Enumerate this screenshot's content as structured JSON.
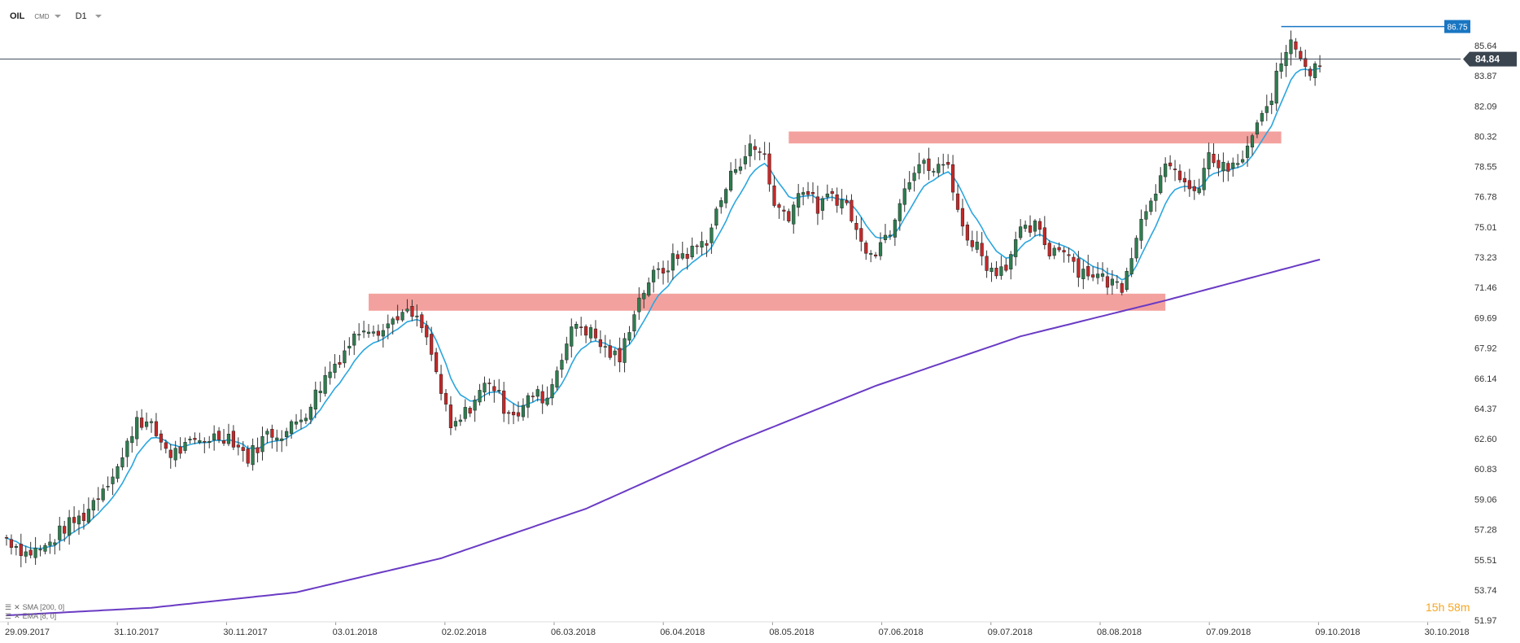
{
  "header": {
    "symbol": "OIL",
    "exchange": "CMD",
    "timeframe": "D1"
  },
  "indicators": [
    {
      "label": "SMA [200, 0]",
      "color": "#6a3bc4"
    },
    {
      "label": "EMA [8, 0]",
      "color": "#2aa6df"
    }
  ],
  "timer": {
    "hours": "15",
    "h": "h",
    "minutes": "58",
    "m": "m"
  },
  "colors": {
    "up": "#2e7d4f",
    "down": "#c62828",
    "wick": "#333333",
    "ema": "#2aa6df",
    "sma": "#6a3bc4",
    "zone": "#f08a86",
    "last_price_line": "#3a4a5a",
    "high_line": "#1976c2"
  },
  "chart_data": {
    "type": "candlestick",
    "title": "",
    "ylim": [
      51.97,
      87.35
    ],
    "y_ticks": [
      "85.64",
      "83.87",
      "82.09",
      "80.32",
      "78.55",
      "76.78",
      "75.01",
      "73.23",
      "71.46",
      "69.69",
      "67.92",
      "66.14",
      "64.37",
      "62.60",
      "60.83",
      "59.06",
      "57.28",
      "55.51",
      "53.74",
      "51.97"
    ],
    "x_labels": [
      "29.09.2017",
      "31.10.2017",
      "30.11.2017",
      "03.01.2018",
      "02.02.2018",
      "06.03.2018",
      "06.04.2018",
      "08.05.2018",
      "07.06.2018",
      "09.07.2018",
      "08.08.2018",
      "07.09.2018",
      "09.10.2018",
      "30.10.2018"
    ],
    "last_price": "84.84",
    "high_marker": "86.75",
    "close_path": [
      [
        0,
        56.8
      ],
      [
        4,
        55.9
      ],
      [
        8,
        56.2
      ],
      [
        12,
        57.4
      ],
      [
        16,
        58.1
      ],
      [
        20,
        59.8
      ],
      [
        24,
        61.4
      ],
      [
        27,
        63.9
      ],
      [
        30,
        63.2
      ],
      [
        34,
        61.7
      ],
      [
        38,
        62.2
      ],
      [
        42,
        62.7
      ],
      [
        46,
        62.8
      ],
      [
        50,
        61.5
      ],
      [
        54,
        62.9
      ],
      [
        58,
        63.0
      ],
      [
        62,
        64.2
      ],
      [
        66,
        66.2
      ],
      [
        70,
        67.8
      ],
      [
        74,
        69.3
      ],
      [
        78,
        69.0
      ],
      [
        81,
        69.9
      ],
      [
        84,
        69.8
      ],
      [
        86,
        69.1
      ],
      [
        88,
        67.5
      ],
      [
        90,
        65.3
      ],
      [
        92,
        63.1
      ],
      [
        94,
        63.7
      ],
      [
        97,
        64.9
      ],
      [
        100,
        66.1
      ],
      [
        103,
        64.5
      ],
      [
        106,
        64.1
      ],
      [
        109,
        65.2
      ],
      [
        112,
        65.0
      ],
      [
        115,
        67.6
      ],
      [
        118,
        69.4
      ],
      [
        121,
        68.8
      ],
      [
        124,
        67.8
      ],
      [
        127,
        67.2
      ],
      [
        130,
        70.2
      ],
      [
        133,
        71.9
      ],
      [
        136,
        72.5
      ],
      [
        139,
        73.3
      ],
      [
        142,
        73.6
      ],
      [
        145,
        74.3
      ],
      [
        148,
        76.6
      ],
      [
        151,
        78.6
      ],
      [
        154,
        79.6
      ],
      [
        157,
        79.3
      ],
      [
        159,
        76.2
      ],
      [
        162,
        75.8
      ],
      [
        165,
        77.4
      ],
      [
        168,
        76.1
      ],
      [
        171,
        76.9
      ],
      [
        174,
        76.3
      ],
      [
        177,
        74.0
      ],
      [
        180,
        73.7
      ],
      [
        183,
        74.9
      ],
      [
        186,
        77.6
      ],
      [
        189,
        78.7
      ],
      [
        192,
        78.3
      ],
      [
        195,
        78.7
      ],
      [
        198,
        74.8
      ],
      [
        201,
        73.9
      ],
      [
        204,
        72.4
      ],
      [
        207,
        72.9
      ],
      [
        210,
        74.6
      ],
      [
        213,
        75.0
      ],
      [
        216,
        73.6
      ],
      [
        219,
        73.9
      ],
      [
        222,
        72.5
      ],
      [
        225,
        72.3
      ],
      [
        228,
        71.8
      ],
      [
        231,
        71.6
      ],
      [
        234,
        74.6
      ],
      [
        237,
        76.9
      ],
      [
        240,
        78.3
      ],
      [
        243,
        78.1
      ],
      [
        246,
        76.7
      ],
      [
        249,
        79.1
      ],
      [
        252,
        78.4
      ],
      [
        255,
        78.5
      ],
      [
        258,
        80.3
      ],
      [
        261,
        81.9
      ],
      [
        264,
        84.6
      ],
      [
        266,
        86.1
      ],
      [
        268,
        85.2
      ],
      [
        270,
        84.0
      ],
      [
        272,
        84.8
      ]
    ],
    "sma_path": [
      [
        0,
        52.25
      ],
      [
        30,
        52.7
      ],
      [
        60,
        53.6
      ],
      [
        90,
        55.6
      ],
      [
        120,
        58.5
      ],
      [
        150,
        62.3
      ],
      [
        180,
        65.7
      ],
      [
        210,
        68.6
      ],
      [
        240,
        70.7
      ],
      [
        272,
        73.1
      ]
    ],
    "zones": [
      {
        "from": 70.1,
        "to": 71.1,
        "i_start": 75,
        "i_end": 240
      },
      {
        "from": 79.9,
        "to": 80.6,
        "i_start": 162,
        "i_end": 264
      }
    ]
  }
}
